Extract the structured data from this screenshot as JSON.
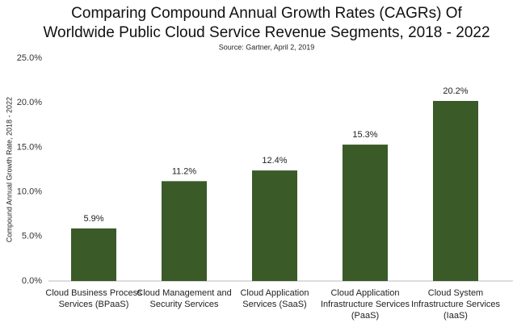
{
  "chart_data": {
    "type": "bar",
    "title": [
      "Comparing Compound Annual Growth Rates (CAGRs) Of",
      "Worldwide Public Cloud Service Revenue Segments, 2018 - 2022"
    ],
    "subtitle": "Source: Gartner, April 2, 2019",
    "y_label": "Compound Annual Growth Rate, 2018 - 2022",
    "categories": [
      [
        "Cloud Business Process",
        "Services (BPaaS)"
      ],
      [
        "Cloud Management and",
        "Security Services"
      ],
      [
        "Cloud Application",
        "Services (SaaS)"
      ],
      [
        "Cloud Application",
        "Infrastructure Services",
        "(PaaS)"
      ],
      [
        "Cloud System",
        "Infrastructure Services",
        "(IaaS)"
      ]
    ],
    "values": [
      5.9,
      11.2,
      12.4,
      15.3,
      20.2
    ],
    "value_labels": [
      "5.9%",
      "11.2%",
      "12.4%",
      "15.3%",
      "20.2%"
    ],
    "color": "#3a5a28",
    "ylim": [
      0,
      25
    ],
    "yticks": [
      {
        "value": 0,
        "label": "0.0%"
      },
      {
        "value": 5,
        "label": "5.0%"
      },
      {
        "value": 10,
        "label": "10.0%"
      },
      {
        "value": 15,
        "label": "15.0%"
      },
      {
        "value": 20,
        "label": "20.0%"
      },
      {
        "value": 25,
        "label": "25.0%"
      }
    ],
    "grid": false
  }
}
